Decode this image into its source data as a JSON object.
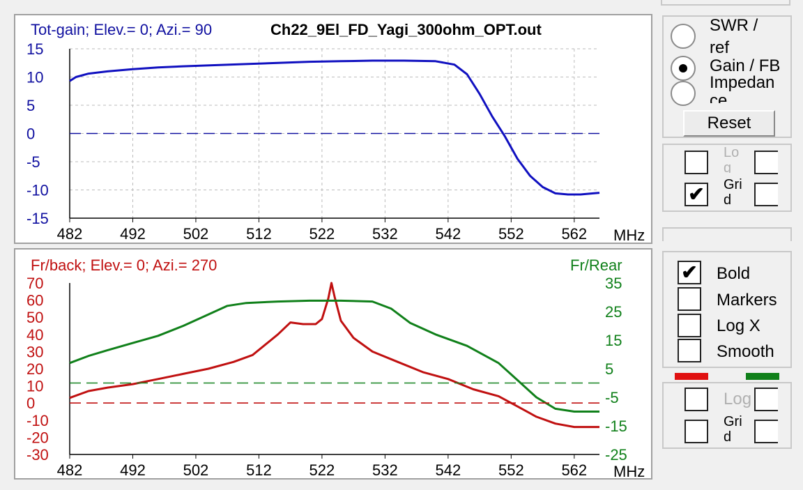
{
  "file_title": "Ch22_9El_FD_Yagi_300ohm_OPT.out",
  "top_chart": {
    "label": "Tot-gain; Elev.= 0; Azi.= 90",
    "x_unit": "MHz",
    "color": "#1010a0"
  },
  "bottom_chart": {
    "label_left": "Fr/back; Elev.= 0; Azi.= 270",
    "label_right": "Fr/Rear",
    "x_unit": "MHz",
    "color_left": "#c01010",
    "color_right": "#10801a"
  },
  "chart_data": [
    {
      "type": "line",
      "title": "Tot-gain; Elev.= 0; Azi.= 90",
      "xlabel": "MHz",
      "ylabel": "",
      "xlim": [
        482,
        566
      ],
      "ylim": [
        -15,
        15
      ],
      "grid": true,
      "x_ticks": [
        "482",
        "492",
        "502",
        "512",
        "522",
        "532",
        "542",
        "552",
        "562"
      ],
      "y_ticks": [
        "15",
        "10",
        "5",
        "0",
        "-5",
        "-10",
        "-15"
      ],
      "series": [
        {
          "name": "",
          "color": "#1010c0",
          "x": [
            482,
            483,
            485,
            488,
            492,
            496,
            500,
            505,
            510,
            515,
            520,
            525,
            530,
            535,
            540,
            543,
            545,
            547,
            549,
            551,
            553,
            555,
            557,
            559,
            561,
            563,
            565,
            566
          ],
          "y": [
            9.3,
            10.0,
            10.6,
            11.0,
            11.4,
            11.7,
            11.9,
            12.1,
            12.3,
            12.5,
            12.7,
            12.8,
            12.9,
            12.9,
            12.8,
            12.2,
            10.5,
            7.0,
            3.0,
            -0.5,
            -4.5,
            -7.5,
            -9.5,
            -10.6,
            -10.8,
            -10.8,
            -10.6,
            -10.5
          ]
        },
        {
          "name": "",
          "color": "#1010a0",
          "dashed": true,
          "x": [
            482,
            566
          ],
          "y": [
            0,
            0
          ]
        }
      ]
    },
    {
      "type": "line",
      "title": "Fr/back; Elev.= 0; Azi.= 270",
      "xlabel": "MHz",
      "ylabel": "",
      "xlim": [
        482,
        566
      ],
      "ylim": [
        -30,
        70
      ],
      "y2lim": [
        -25,
        35
      ],
      "y2label": "Fr/Rear",
      "grid": false,
      "x_ticks": [
        "482",
        "492",
        "502",
        "512",
        "522",
        "532",
        "542",
        "552",
        "562"
      ],
      "y_ticks": [
        "70",
        "60",
        "50",
        "40",
        "30",
        "20",
        "10",
        "0",
        "-10",
        "-20",
        "-30"
      ],
      "y2_ticks": [
        "35",
        "25",
        "15",
        "5",
        "-5",
        "-15",
        "-25"
      ],
      "series": [
        {
          "name": "Fr/back",
          "axis": "left",
          "color": "#c01010",
          "x": [
            482,
            485,
            488,
            492,
            496,
            500,
            504,
            508,
            511,
            513,
            515,
            517,
            519,
            521,
            522,
            523,
            523.5,
            524,
            525,
            527,
            530,
            534,
            538,
            542,
            546,
            550,
            553,
            556,
            559,
            562,
            566
          ],
          "y": [
            3,
            7,
            9,
            11,
            14,
            17,
            20,
            24,
            28,
            34,
            40,
            47,
            46,
            46,
            49,
            61,
            70,
            62,
            48,
            38,
            30,
            24,
            18,
            14,
            8,
            4,
            -2,
            -8,
            -12,
            -14,
            -14
          ]
        },
        {
          "name": "Fr/Rear",
          "axis": "right",
          "color": "#10801a",
          "x": [
            482,
            485,
            488,
            492,
            496,
            500,
            504,
            507,
            510,
            515,
            520,
            525,
            530,
            533,
            536,
            540,
            545,
            550,
            553,
            556,
            559,
            562,
            566
          ],
          "y": [
            7,
            9.5,
            11.5,
            14,
            16.5,
            20,
            24,
            27,
            28,
            28.5,
            28.8,
            28.8,
            28.5,
            26,
            21,
            17,
            13,
            7,
            1,
            -5,
            -9,
            -10,
            -10
          ]
        },
        {
          "name": "",
          "axis": "left",
          "color": "#c01010",
          "dashed": true,
          "x": [
            482,
            566
          ],
          "y": [
            0,
            0
          ]
        },
        {
          "name": "",
          "axis": "right",
          "color": "#10801a",
          "dashed": true,
          "x": [
            482,
            566
          ],
          "y": [
            0,
            0
          ]
        }
      ]
    }
  ],
  "controls": {
    "radio_options": [
      {
        "label_line1": "SWR /",
        "label_line2": "ref",
        "selected": false
      },
      {
        "label_line1": "Gain / FB",
        "label_line2": "",
        "selected": true
      },
      {
        "label_line1": "Impedan",
        "label_line2": "ce",
        "selected": false
      }
    ],
    "reset_label": "Reset",
    "top_log_label": "Lo\ng",
    "top_grid_label": "Gri\nd",
    "top_log_checked": false,
    "top_grid_checked": true,
    "options": [
      {
        "label": "Bold",
        "checked": true
      },
      {
        "label": "Markers",
        "checked": false
      },
      {
        "label": "Log X",
        "checked": false
      },
      {
        "label": "Smooth",
        "checked": false
      }
    ],
    "bottom_log_label": "Log",
    "bottom_grid_label": "Gri\nd",
    "check_mark": "✔"
  }
}
